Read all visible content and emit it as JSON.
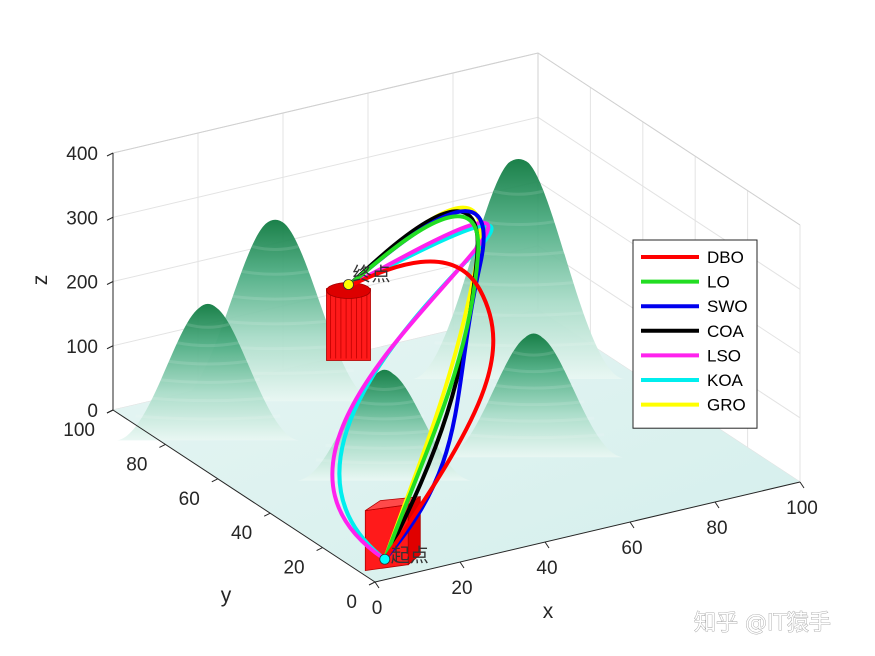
{
  "chart_data": {
    "type": "3d-surface-paths",
    "xlabel": "x",
    "ylabel": "y",
    "zlabel": "z",
    "xlim": [
      0,
      100
    ],
    "ylim": [
      0,
      100
    ],
    "zlim": [
      0,
      400
    ],
    "xticks": [
      "0",
      "20",
      "40",
      "60",
      "80",
      "100"
    ],
    "yticks": [
      "0",
      "20",
      "40",
      "60",
      "80",
      "100"
    ],
    "zticks": [
      "0",
      "100",
      "200",
      "300",
      "400"
    ],
    "grid": true,
    "legend_position": "right",
    "start_label": "起点",
    "end_label": "终点",
    "start": [
      2,
      2,
      0
    ],
    "end": [
      40,
      75,
      200
    ],
    "terrain_peaks": [
      {
        "x": 10,
        "y": 80,
        "z": 200
      },
      {
        "x": 32,
        "y": 90,
        "z": 270
      },
      {
        "x": 30,
        "y": 45,
        "z": 160
      },
      {
        "x": 62,
        "y": 40,
        "z": 180
      },
      {
        "x": 80,
        "y": 75,
        "z": 330
      }
    ],
    "series": [
      {
        "name": "DBO",
        "color": "#ff0000"
      },
      {
        "name": "LO",
        "color": "#22dd22"
      },
      {
        "name": "SWO",
        "color": "#0000ee"
      },
      {
        "name": "COA",
        "color": "#000000"
      },
      {
        "name": "LSO",
        "color": "#ff22ee"
      },
      {
        "name": "KOA",
        "color": "#00eeee"
      },
      {
        "name": "GRO",
        "color": "#ffff00"
      }
    ]
  },
  "watermark": "知乎 @IT猿手"
}
